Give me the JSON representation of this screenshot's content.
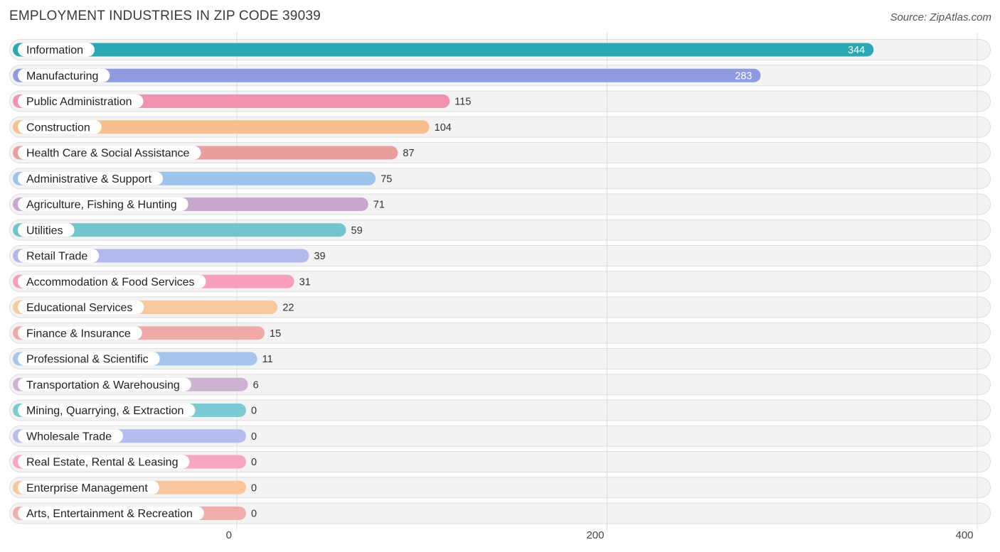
{
  "header": {
    "title": "EMPLOYMENT INDUSTRIES IN ZIP CODE 39039",
    "source": "Source: ZipAtlas.com"
  },
  "chart_data": {
    "type": "bar",
    "orientation": "horizontal",
    "title": "EMPLOYMENT INDUSTRIES IN ZIP CODE 39039",
    "source": "Source: ZipAtlas.com",
    "categories": [
      "Information",
      "Manufacturing",
      "Public Administration",
      "Construction",
      "Health Care & Social Assistance",
      "Administrative & Support",
      "Agriculture, Fishing & Hunting",
      "Utilities",
      "Retail Trade",
      "Accommodation & Food Services",
      "Educational Services",
      "Finance & Insurance",
      "Professional & Scientific",
      "Transportation & Warehousing",
      "Mining, Quarrying, & Extraction",
      "Wholesale Trade",
      "Real Estate, Rental & Leasing",
      "Enterprise Management",
      "Arts, Entertainment & Recreation"
    ],
    "values": [
      344,
      283,
      115,
      104,
      87,
      75,
      71,
      59,
      39,
      31,
      22,
      15,
      11,
      6,
      0,
      0,
      0,
      0,
      0
    ],
    "value_labels": [
      "344",
      "283",
      "115",
      "104",
      "87",
      "75",
      "71",
      "59",
      "39",
      "31",
      "22",
      "15",
      "11",
      "6",
      "0",
      "0",
      "0",
      "0",
      "0"
    ],
    "colors": [
      "#2aa8b4",
      "#8e9be0",
      "#f392ae",
      "#f8c08e",
      "#ea9e9c",
      "#9ec3ea",
      "#c8a8cf",
      "#73c5cc",
      "#b3b9ec",
      "#f79fba",
      "#f8c99d",
      "#efaaa8",
      "#a6c5eb",
      "#cdb2d2",
      "#7ccbd2",
      "#b6bcee",
      "#f8a6c0",
      "#f9c79b",
      "#efaeab"
    ],
    "xlim": [
      0,
      400
    ],
    "xticks": [
      0,
      200,
      400
    ],
    "xtick_labels": [
      "0",
      "200",
      "400"
    ],
    "grid": true,
    "legend": "none",
    "value_labels_inside_for": [
      "Information",
      "Manufacturing"
    ]
  }
}
